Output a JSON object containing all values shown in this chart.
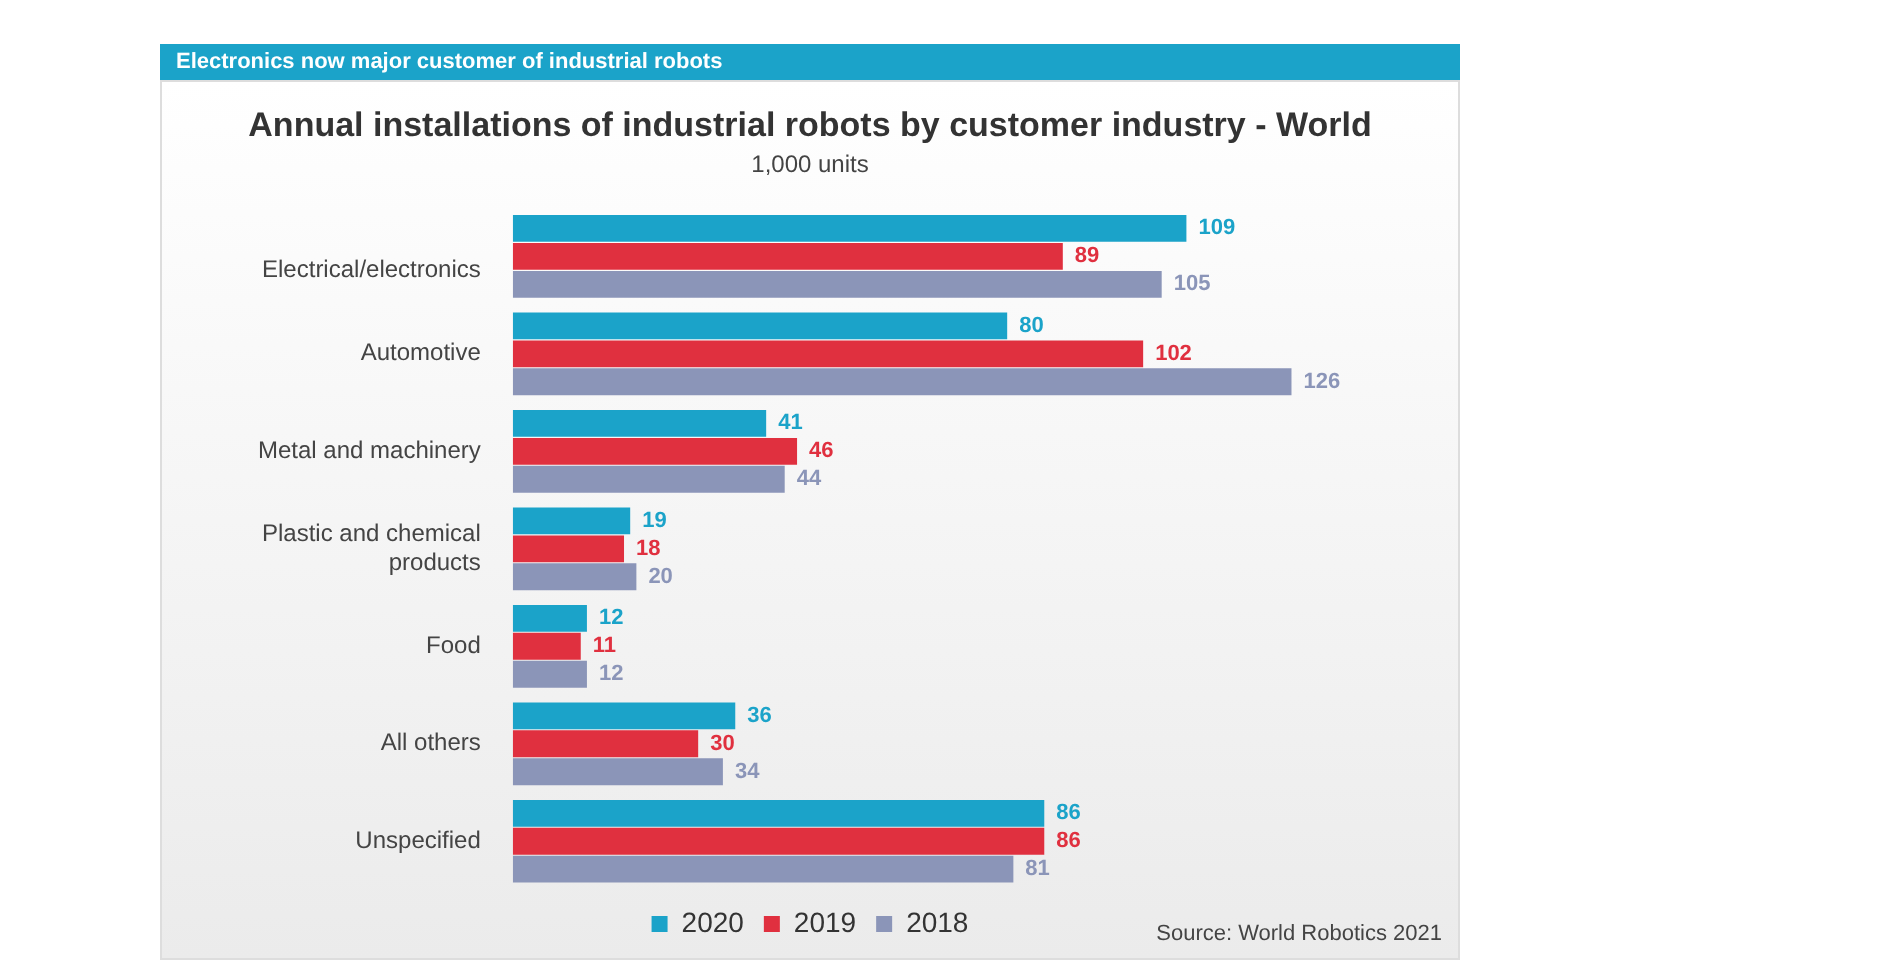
{
  "chart_data": {
    "type": "bar",
    "orientation": "horizontal",
    "title": "Annual installations of industrial robots by customer industry - World",
    "subtitle": "1,000 units",
    "annotations": [
      "Electronics now major customer of industrial robots",
      "Source: World Robotics 2021"
    ],
    "categories": [
      "Electrical/electronics",
      "Automotive",
      "Metal and machinery",
      "Plastic and chemical products",
      "Food",
      "All others",
      "Unspecified"
    ],
    "series": [
      {
        "name": "2020",
        "color": "#1ba3c9",
        "values": [
          109,
          80,
          41,
          19,
          12,
          36,
          86
        ]
      },
      {
        "name": "2019",
        "color": "#e0303f",
        "values": [
          89,
          102,
          46,
          18,
          11,
          30,
          86
        ]
      },
      {
        "name": "2018",
        "color": "#8b95b8",
        "values": [
          105,
          126,
          44,
          20,
          12,
          34,
          81
        ]
      }
    ],
    "data_labels": true,
    "legend": "bottom",
    "grid": false
  }
}
